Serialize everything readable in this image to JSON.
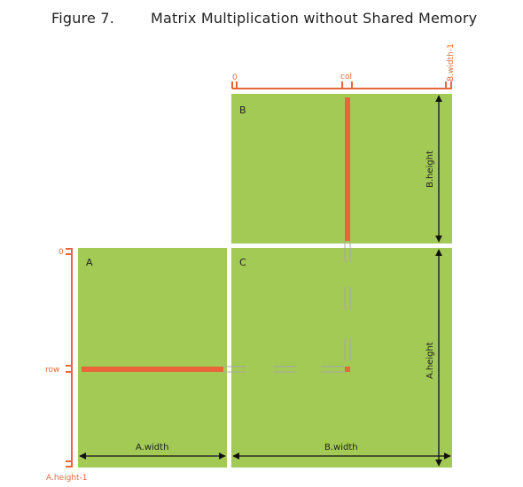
{
  "figure": {
    "number": "Figure 7.",
    "title": "Matrix Multiplication without Shared Memory"
  },
  "matrices": {
    "a": {
      "letter": "A",
      "width_label": "A.width"
    },
    "b": {
      "letter": "B",
      "height_label": "B.height"
    },
    "c": {
      "letter": "C",
      "width_label": "B.width",
      "height_label": "A.height"
    }
  },
  "indices": {
    "col_start": "0",
    "col": "col",
    "col_end": "B.width-1",
    "row_start": "0",
    "row": "row",
    "row_end": "A.height-1"
  },
  "colors": {
    "matrix_fill": "#a2ca55",
    "highlight": "#e8663a",
    "index_label": "#e06a3a",
    "dashed_line": "#a8a8a8"
  }
}
